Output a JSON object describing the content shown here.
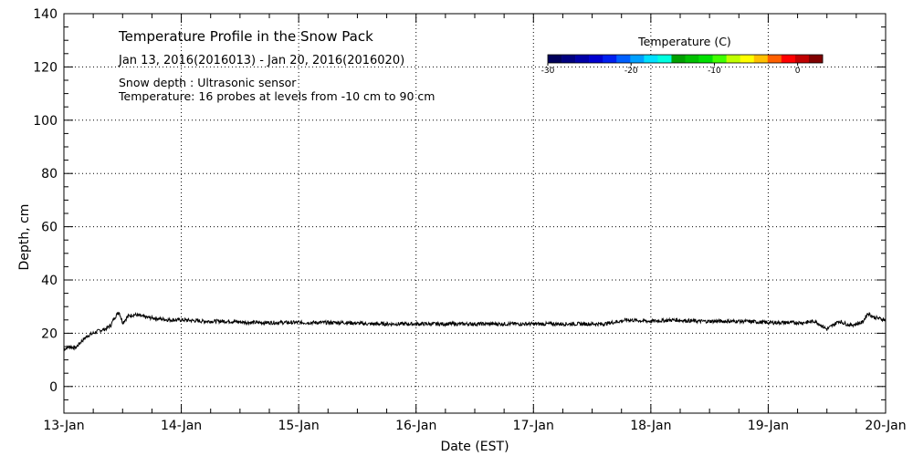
{
  "chart_data": {
    "type": "line",
    "title": "Temperature Profile in the Snow Pack",
    "subtitle": "Jan 13, 2016(2016013) - Jan 20, 2016(2016020)",
    "annotations": [
      "Snow depth : Ultrasonic sensor",
      "Temperature: 16 probes at levels from -10 cm to 90 cm"
    ],
    "xlabel": "Date (EST)",
    "ylabel": "Depth, cm",
    "xlim": [
      0,
      7
    ],
    "ylim": [
      -10,
      140
    ],
    "x_ticks": [
      {
        "value": 0,
        "label": "13-Jan"
      },
      {
        "value": 1,
        "label": "14-Jan"
      },
      {
        "value": 2,
        "label": "15-Jan"
      },
      {
        "value": 3,
        "label": "16-Jan"
      },
      {
        "value": 4,
        "label": "17-Jan"
      },
      {
        "value": 5,
        "label": "18-Jan"
      },
      {
        "value": 6,
        "label": "19-Jan"
      },
      {
        "value": 7,
        "label": "20-Jan"
      }
    ],
    "y_ticks": [
      {
        "value": 0,
        "label": "0"
      },
      {
        "value": 20,
        "label": "20"
      },
      {
        "value": 40,
        "label": "40"
      },
      {
        "value": 60,
        "label": "60"
      },
      {
        "value": 80,
        "label": "80"
      },
      {
        "value": 100,
        "label": "100"
      },
      {
        "value": 120,
        "label": "120"
      },
      {
        "value": 140,
        "label": "140"
      }
    ],
    "grid": true,
    "colorbar": {
      "title": "Temperature (C)",
      "range": [
        -30,
        3
      ],
      "ticks": [
        {
          "value": -30,
          "label": "-30"
        },
        {
          "value": -20,
          "label": "-20"
        },
        {
          "value": -10,
          "label": "-10"
        },
        {
          "value": 0,
          "label": "0"
        }
      ],
      "colors": [
        "#00005a",
        "#000080",
        "#0000a8",
        "#0000d0",
        "#0020f0",
        "#0060ff",
        "#00a0ff",
        "#00e0ff",
        "#00ffe0",
        "#00a000",
        "#00c000",
        "#00e000",
        "#40ff00",
        "#c0ff00",
        "#ffff00",
        "#ffc000",
        "#ff6000",
        "#ff0000",
        "#c00000",
        "#800000"
      ]
    },
    "series": [
      {
        "color": "#000000",
        "x": [
          0,
          0.05,
          0.1,
          0.15,
          0.2,
          0.25,
          0.3,
          0.35,
          0.4,
          0.42,
          0.45,
          0.47,
          0.5,
          0.55,
          0.6,
          0.7,
          0.8,
          0.9,
          1.0,
          1.2,
          1.4,
          1.6,
          1.8,
          2.0,
          2.2,
          2.4,
          2.6,
          2.8,
          3.0,
          3.2,
          3.4,
          3.6,
          3.8,
          4.0,
          4.2,
          4.4,
          4.6,
          4.8,
          5.0,
          5.2,
          5.4,
          5.6,
          5.8,
          6.0,
          6.2,
          6.3,
          6.4,
          6.5,
          6.55,
          6.6,
          6.7,
          6.8,
          6.85,
          6.9,
          7.0
        ],
        "y": [
          14,
          15,
          14.5,
          17,
          19,
          20,
          21,
          21.5,
          23,
          25,
          27,
          28,
          24,
          26.5,
          27,
          26,
          25.5,
          25,
          25,
          24.5,
          24.5,
          24,
          24,
          24,
          24,
          24,
          23.5,
          23.5,
          23.5,
          23.5,
          23.5,
          23.5,
          23.5,
          23.5,
          23.5,
          23.5,
          23.5,
          25,
          24.5,
          25,
          24.5,
          24.5,
          24.5,
          24,
          24,
          24,
          24.5,
          21.5,
          23,
          24.5,
          23,
          24,
          27.5,
          26,
          25
        ]
      }
    ]
  }
}
